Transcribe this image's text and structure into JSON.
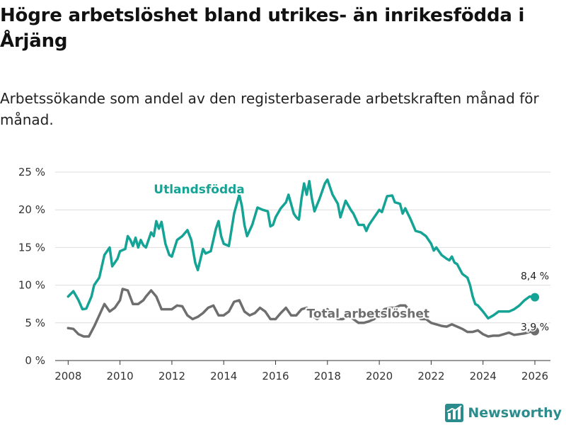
{
  "header": {
    "title": "Högre arbetslöshet bland utrikes- än inrikesfödda i Årjäng",
    "subtitle": "Arbetssökande som andel av den registerbaserade arbetskraften månad för månad."
  },
  "brand": {
    "name": "Newsworthy"
  },
  "colors": {
    "foreign": "#14a394",
    "total": "#6e6e6e",
    "grid": "#dddddd",
    "brand": "#2a8c8c"
  },
  "chart_data": {
    "type": "line",
    "title": "Högre arbetslöshet bland utrikes- än inrikesfödda i Årjäng",
    "subtitle": "Arbetssökande som andel av den registerbaserade arbetskraften månad för månad.",
    "xlabel": "",
    "ylabel": "",
    "xlim": [
      2007.5,
      2026.6
    ],
    "ylim": [
      0,
      25
    ],
    "x_ticks": [
      2008,
      2010,
      2012,
      2014,
      2016,
      2018,
      2020,
      2022,
      2024,
      2026
    ],
    "x_tick_labels": [
      "2008",
      "2010",
      "2012",
      "2014",
      "2016",
      "2018",
      "2020",
      "2022",
      "2024",
      "2026"
    ],
    "y_ticks": [
      0,
      5,
      10,
      15,
      20,
      25
    ],
    "y_tick_labels": [
      "0 %",
      "5 %",
      "10 %",
      "15 %",
      "20 %",
      "25 %"
    ],
    "grid": true,
    "series": [
      {
        "name": "Utlandsfödda",
        "end_label": "8,4 %",
        "points": [
          [
            2008.0,
            8.5
          ],
          [
            2008.2,
            9.2
          ],
          [
            2008.4,
            8.0
          ],
          [
            2008.55,
            6.8
          ],
          [
            2008.7,
            6.9
          ],
          [
            2008.9,
            8.5
          ],
          [
            2009.0,
            10.0
          ],
          [
            2009.2,
            11.0
          ],
          [
            2009.4,
            14.0
          ],
          [
            2009.6,
            15.0
          ],
          [
            2009.7,
            12.5
          ],
          [
            2009.9,
            13.5
          ],
          [
            2010.0,
            14.5
          ],
          [
            2010.2,
            14.8
          ],
          [
            2010.3,
            16.5
          ],
          [
            2010.4,
            16.0
          ],
          [
            2010.5,
            15.2
          ],
          [
            2010.6,
            16.3
          ],
          [
            2010.7,
            15.0
          ],
          [
            2010.8,
            16.0
          ],
          [
            2010.9,
            15.3
          ],
          [
            2011.0,
            15.0
          ],
          [
            2011.2,
            17.0
          ],
          [
            2011.3,
            16.5
          ],
          [
            2011.4,
            18.5
          ],
          [
            2011.5,
            17.5
          ],
          [
            2011.6,
            18.4
          ],
          [
            2011.75,
            15.5
          ],
          [
            2011.9,
            14.0
          ],
          [
            2012.0,
            13.8
          ],
          [
            2012.2,
            16.0
          ],
          [
            2012.4,
            16.5
          ],
          [
            2012.6,
            17.3
          ],
          [
            2012.75,
            16.0
          ],
          [
            2012.9,
            13.0
          ],
          [
            2013.0,
            12.0
          ],
          [
            2013.2,
            14.8
          ],
          [
            2013.3,
            14.2
          ],
          [
            2013.5,
            14.5
          ],
          [
            2013.7,
            17.5
          ],
          [
            2013.8,
            18.5
          ],
          [
            2013.9,
            16.5
          ],
          [
            2014.0,
            15.5
          ],
          [
            2014.2,
            15.2
          ],
          [
            2014.4,
            19.5
          ],
          [
            2014.6,
            22.0
          ],
          [
            2014.7,
            20.5
          ],
          [
            2014.8,
            18.0
          ],
          [
            2014.9,
            16.5
          ],
          [
            2015.1,
            18.0
          ],
          [
            2015.3,
            20.3
          ],
          [
            2015.5,
            20.0
          ],
          [
            2015.7,
            19.8
          ],
          [
            2015.8,
            17.8
          ],
          [
            2015.9,
            18.0
          ],
          [
            2016.0,
            19.0
          ],
          [
            2016.2,
            20.2
          ],
          [
            2016.4,
            21.0
          ],
          [
            2016.5,
            22.0
          ],
          [
            2016.7,
            19.5
          ],
          [
            2016.8,
            19.0
          ],
          [
            2016.9,
            18.7
          ],
          [
            2017.0,
            21.5
          ],
          [
            2017.1,
            23.5
          ],
          [
            2017.2,
            22.0
          ],
          [
            2017.3,
            23.8
          ],
          [
            2017.4,
            21.5
          ],
          [
            2017.5,
            19.8
          ],
          [
            2017.7,
            21.5
          ],
          [
            2017.9,
            23.5
          ],
          [
            2018.0,
            24.0
          ],
          [
            2018.2,
            22.0
          ],
          [
            2018.4,
            20.8
          ],
          [
            2018.5,
            19.0
          ],
          [
            2018.7,
            21.2
          ],
          [
            2018.9,
            20.0
          ],
          [
            2019.0,
            19.5
          ],
          [
            2019.2,
            18.0
          ],
          [
            2019.4,
            18.0
          ],
          [
            2019.5,
            17.2
          ],
          [
            2019.6,
            18.0
          ],
          [
            2019.8,
            19.0
          ],
          [
            2020.0,
            20.0
          ],
          [
            2020.1,
            19.7
          ],
          [
            2020.3,
            21.8
          ],
          [
            2020.5,
            21.9
          ],
          [
            2020.6,
            21.0
          ],
          [
            2020.8,
            20.8
          ],
          [
            2020.9,
            19.5
          ],
          [
            2021.0,
            20.2
          ],
          [
            2021.2,
            18.8
          ],
          [
            2021.4,
            17.2
          ],
          [
            2021.6,
            17.0
          ],
          [
            2021.8,
            16.5
          ],
          [
            2022.0,
            15.5
          ],
          [
            2022.1,
            14.6
          ],
          [
            2022.2,
            15.0
          ],
          [
            2022.4,
            14.0
          ],
          [
            2022.6,
            13.5
          ],
          [
            2022.7,
            13.3
          ],
          [
            2022.8,
            13.8
          ],
          [
            2022.9,
            13.0
          ],
          [
            2023.0,
            12.8
          ],
          [
            2023.2,
            11.5
          ],
          [
            2023.4,
            11.0
          ],
          [
            2023.5,
            10.0
          ],
          [
            2023.6,
            8.5
          ],
          [
            2023.7,
            7.5
          ],
          [
            2023.8,
            7.3
          ],
          [
            2024.0,
            6.5
          ],
          [
            2024.2,
            5.6
          ],
          [
            2024.4,
            6.0
          ],
          [
            2024.6,
            6.5
          ],
          [
            2024.8,
            6.5
          ],
          [
            2025.0,
            6.5
          ],
          [
            2025.2,
            6.8
          ],
          [
            2025.4,
            7.3
          ],
          [
            2025.6,
            8.0
          ],
          [
            2025.8,
            8.5
          ],
          [
            2026.0,
            8.4
          ]
        ]
      },
      {
        "name": "Total arbetslöshet",
        "end_label": "3,9 %",
        "points": [
          [
            2008.0,
            4.3
          ],
          [
            2008.2,
            4.2
          ],
          [
            2008.4,
            3.5
          ],
          [
            2008.6,
            3.2
          ],
          [
            2008.8,
            3.2
          ],
          [
            2009.0,
            4.5
          ],
          [
            2009.2,
            6.0
          ],
          [
            2009.4,
            7.5
          ],
          [
            2009.6,
            6.5
          ],
          [
            2009.8,
            7.0
          ],
          [
            2010.0,
            8.0
          ],
          [
            2010.1,
            9.5
          ],
          [
            2010.3,
            9.3
          ],
          [
            2010.5,
            7.5
          ],
          [
            2010.7,
            7.5
          ],
          [
            2010.9,
            8.0
          ],
          [
            2011.0,
            8.5
          ],
          [
            2011.2,
            9.3
          ],
          [
            2011.4,
            8.5
          ],
          [
            2011.6,
            6.8
          ],
          [
            2011.8,
            6.8
          ],
          [
            2012.0,
            6.8
          ],
          [
            2012.2,
            7.3
          ],
          [
            2012.4,
            7.2
          ],
          [
            2012.6,
            6.0
          ],
          [
            2012.8,
            5.5
          ],
          [
            2013.0,
            5.8
          ],
          [
            2013.2,
            6.3
          ],
          [
            2013.4,
            7.0
          ],
          [
            2013.6,
            7.3
          ],
          [
            2013.8,
            6.0
          ],
          [
            2014.0,
            6.0
          ],
          [
            2014.2,
            6.5
          ],
          [
            2014.4,
            7.8
          ],
          [
            2014.6,
            8.0
          ],
          [
            2014.8,
            6.5
          ],
          [
            2015.0,
            6.0
          ],
          [
            2015.2,
            6.3
          ],
          [
            2015.4,
            7.0
          ],
          [
            2015.6,
            6.5
          ],
          [
            2015.8,
            5.5
          ],
          [
            2016.0,
            5.5
          ],
          [
            2016.2,
            6.3
          ],
          [
            2016.4,
            7.0
          ],
          [
            2016.6,
            6.0
          ],
          [
            2016.8,
            6.0
          ],
          [
            2017.0,
            6.8
          ],
          [
            2017.2,
            7.0
          ],
          [
            2017.4,
            6.0
          ],
          [
            2017.6,
            5.5
          ],
          [
            2017.8,
            6.0
          ],
          [
            2018.0,
            6.8
          ],
          [
            2018.2,
            6.0
          ],
          [
            2018.4,
            5.5
          ],
          [
            2018.6,
            5.5
          ],
          [
            2018.8,
            6.0
          ],
          [
            2019.0,
            5.5
          ],
          [
            2019.2,
            5.0
          ],
          [
            2019.4,
            5.0
          ],
          [
            2019.6,
            5.2
          ],
          [
            2019.8,
            5.5
          ],
          [
            2020.0,
            6.2
          ],
          [
            2020.2,
            6.8
          ],
          [
            2020.4,
            7.0
          ],
          [
            2020.6,
            7.0
          ],
          [
            2020.8,
            7.3
          ],
          [
            2021.0,
            7.3
          ],
          [
            2021.2,
            6.5
          ],
          [
            2021.4,
            6.0
          ],
          [
            2021.6,
            5.5
          ],
          [
            2021.8,
            5.5
          ],
          [
            2022.0,
            5.0
          ],
          [
            2022.2,
            4.8
          ],
          [
            2022.4,
            4.6
          ],
          [
            2022.6,
            4.5
          ],
          [
            2022.8,
            4.8
          ],
          [
            2023.0,
            4.5
          ],
          [
            2023.2,
            4.2
          ],
          [
            2023.4,
            3.8
          ],
          [
            2023.6,
            3.8
          ],
          [
            2023.8,
            4.0
          ],
          [
            2024.0,
            3.5
          ],
          [
            2024.2,
            3.2
          ],
          [
            2024.4,
            3.3
          ],
          [
            2024.6,
            3.3
          ],
          [
            2024.8,
            3.5
          ],
          [
            2025.0,
            3.7
          ],
          [
            2025.2,
            3.4
          ],
          [
            2025.4,
            3.5
          ],
          [
            2025.6,
            3.6
          ],
          [
            2025.8,
            3.8
          ],
          [
            2026.0,
            3.9
          ]
        ]
      }
    ]
  }
}
